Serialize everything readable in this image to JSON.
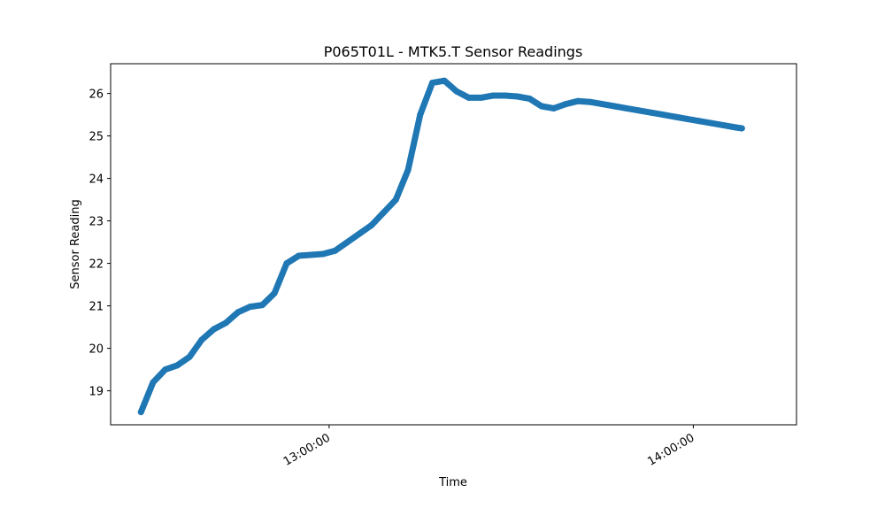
{
  "chart_data": {
    "type": "line",
    "title": "P065T01L - MTK5.T Sensor Readings",
    "xlabel": "Time",
    "ylabel": "Sensor Reading",
    "x_tick_labels": [
      "13:00:00",
      "14:00:00"
    ],
    "y_ticks": [
      19,
      20,
      21,
      22,
      23,
      24,
      25,
      26
    ],
    "xlim": [
      "12:24:00",
      "14:17:00"
    ],
    "ylim": [
      18.2,
      26.7
    ],
    "grid": false,
    "legend": "none",
    "line_color": "#1f77b4",
    "series": [
      {
        "x": [
          "12:29:00",
          "12:31:00",
          "12:33:00",
          "12:35:00",
          "12:37:00",
          "12:39:00",
          "12:41:00",
          "12:43:00",
          "12:45:00",
          "12:47:00",
          "12:49:00",
          "12:51:00",
          "12:53:00",
          "12:55:00",
          "12:57:00",
          "12:59:00",
          "13:01:00",
          "13:03:00",
          "13:05:00",
          "13:07:00",
          "13:09:00",
          "13:11:00",
          "13:13:00",
          "13:15:00",
          "13:17:00",
          "13:19:00",
          "13:21:00",
          "13:23:00",
          "13:25:00",
          "13:27:00",
          "13:29:00",
          "13:31:00",
          "13:33:00",
          "13:35:00",
          "13:37:00",
          "13:39:00",
          "13:41:00",
          "13:43:00",
          "13:45:00",
          "13:47:00",
          "13:49:00",
          "13:51:00",
          "13:53:00",
          "13:55:00",
          "13:57:00",
          "13:59:00",
          "14:01:00",
          "14:03:00",
          "14:05:00",
          "14:07:00",
          "14:08:00"
        ],
        "y": [
          18.5,
          19.2,
          19.5,
          19.6,
          19.8,
          20.2,
          20.45,
          20.6,
          20.85,
          20.98,
          21.02,
          21.3,
          22.0,
          22.18,
          22.2,
          22.22,
          22.3,
          22.5,
          22.7,
          22.9,
          23.2,
          23.5,
          24.2,
          25.5,
          26.25,
          26.3,
          26.05,
          25.9,
          25.9,
          25.95,
          25.95,
          25.93,
          25.88,
          25.7,
          25.65,
          25.75,
          25.82,
          25.8,
          25.75,
          25.7,
          25.65,
          25.6,
          25.55,
          25.5,
          25.45,
          25.4,
          25.35,
          25.3,
          25.25,
          25.2,
          25.18
        ]
      }
    ]
  }
}
